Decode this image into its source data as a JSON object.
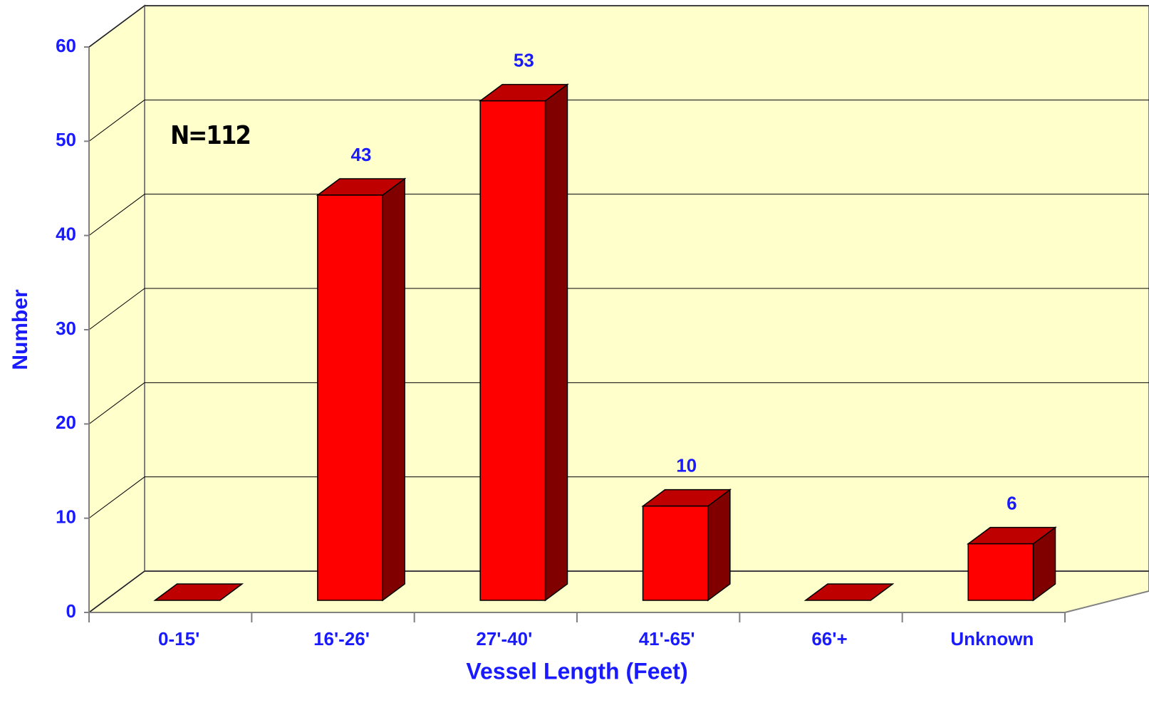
{
  "chart_data": {
    "type": "bar3d",
    "annotation": "N=112",
    "x_label": "Vessel Length (Feet)",
    "y_label": "Number",
    "categories": [
      "0-15'",
      "16'-26'",
      "27'-40'",
      "41'-65'",
      "66'+",
      "Unknown"
    ],
    "values": [
      0,
      43,
      53,
      10,
      0,
      6
    ],
    "color": "#ff0000",
    "ylim": [
      0,
      60
    ],
    "yticks": [
      0,
      10,
      20,
      30,
      40,
      50,
      60
    ],
    "grid": true
  }
}
